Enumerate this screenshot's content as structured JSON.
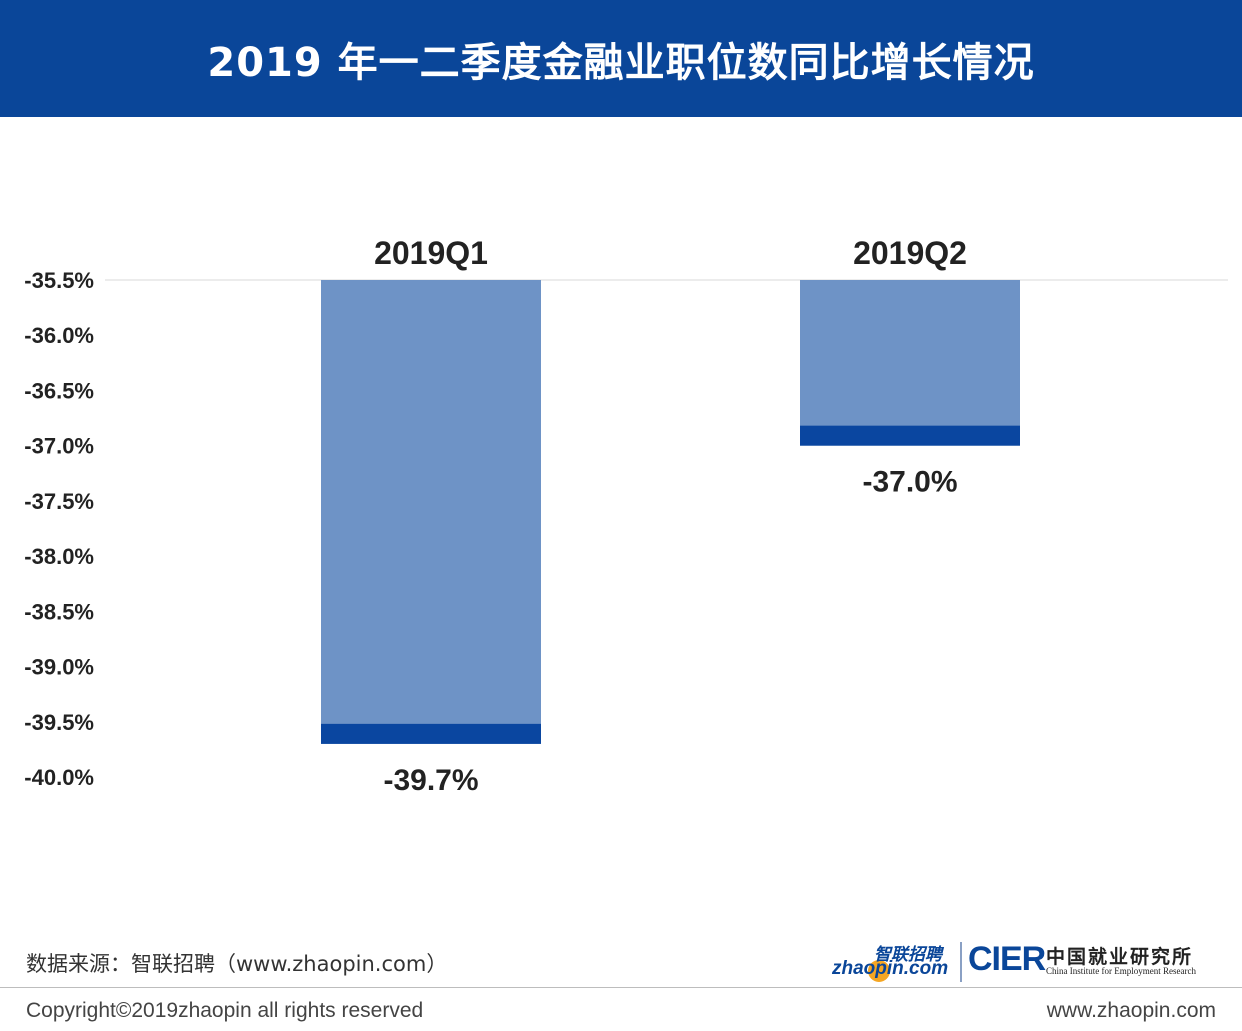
{
  "title": "2019 年一二季度金融业职位数同比增长情况",
  "chart_data": {
    "type": "bar",
    "categories": [
      "2019Q1",
      "2019Q2"
    ],
    "values": [
      -39.7,
      -37.0
    ],
    "value_labels": [
      "-39.7%",
      "-37.0%"
    ],
    "y_ticks": [
      "-35.5%",
      "-36.0%",
      "-36.5%",
      "-37.0%",
      "-37.5%",
      "-38.0%",
      "-38.5%",
      "-39.0%",
      "-39.5%",
      "-40.0%"
    ],
    "ylim": [
      -40.0,
      -35.5
    ],
    "grid": false,
    "colors": {
      "bar": "#6e93c6",
      "bar_tip": "#0a46a0"
    }
  },
  "footer": {
    "source": "数据来源：智联招聘（www.zhaopin.com）",
    "copyright": "Copyright©2019zhaopin all rights reserved",
    "website": "www.zhaopin.com"
  },
  "logos": {
    "zhaopin_cn": "智联招聘",
    "zhaopin_en": "zhaopin.com",
    "cier": "CIER",
    "cier_cn": "中国就业研究所",
    "cier_en": "China Institute for Employment Research"
  },
  "colors": {
    "header_bg": "#0a4699"
  }
}
